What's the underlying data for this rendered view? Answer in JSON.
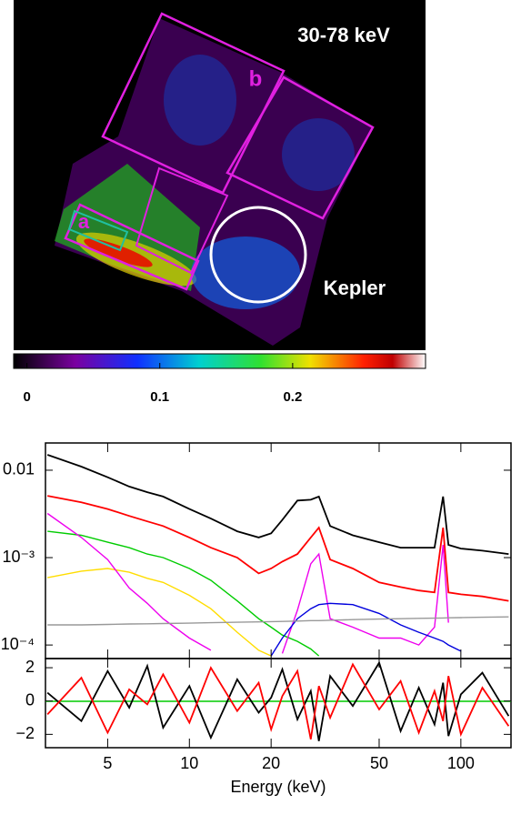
{
  "chart_data": [
    {
      "type": "image",
      "title": "30-78 keV",
      "annotations": [
        "a",
        "b",
        "Kepler"
      ],
      "colorbar_lim": [
        -0.01,
        0.3
      ],
      "colorbar_ticks": [
        0,
        0.1,
        0.2
      ]
    },
    {
      "type": "line",
      "xscale": "log",
      "yscale": "log",
      "xlim": [
        2.95,
        153
      ],
      "ylim": [
        7e-05,
        0.0205
      ],
      "yticks": [
        {
          "value": 0.01,
          "label": "0.01"
        },
        {
          "value": 0.001,
          "label": "10⁻³"
        },
        {
          "value": 0.0001,
          "label": "10⁻⁴"
        }
      ],
      "x": [
        3,
        4,
        5,
        6,
        7,
        8,
        10,
        12,
        15,
        18,
        20,
        22,
        25,
        28,
        30,
        33,
        40,
        50,
        60,
        70,
        80,
        86,
        90,
        100,
        120,
        150
      ],
      "series": [
        {
          "color": "#000000",
          "values": [
            0.015,
            0.011,
            0.0083,
            0.0065,
            0.0056,
            0.005,
            0.0036,
            0.0028,
            0.002,
            0.0017,
            0.0019,
            0.0027,
            0.0045,
            0.0046,
            0.005,
            0.0023,
            0.0018,
            0.0015,
            0.0013,
            0.0013,
            0.0013,
            0.005,
            0.0014,
            0.00127,
            0.0012,
            0.0011
          ]
        },
        {
          "color": "#ff0000",
          "values": [
            0.0051,
            0.0043,
            0.0036,
            0.003,
            0.0026,
            0.0023,
            0.0017,
            0.0013,
            0.001,
            0.00066,
            0.00075,
            0.0009,
            0.0011,
            0.0017,
            0.0022,
            0.00095,
            0.00075,
            0.00052,
            0.00046,
            0.00042,
            0.0004,
            0.0022,
            0.0004,
            0.00038,
            0.00036,
            0.00032
          ]
        },
        {
          "color": "#00cc00",
          "values": [
            0.002,
            0.0018,
            0.0015,
            0.0013,
            0.0011,
            0.001,
            0.00075,
            0.00055,
            0.00032,
            0.0002,
            0.00016,
            0.00013,
            0.00011,
            9e-05,
            7.5e-05,
            null,
            null,
            null,
            null,
            null,
            null,
            null,
            null,
            null,
            null,
            null
          ]
        },
        {
          "color": "#ffdd00",
          "values": [
            0.00059,
            0.0007,
            0.00075,
            0.00068,
            0.00058,
            0.00052,
            0.00037,
            0.00026,
            0.00014,
            8.7e-05,
            7.5e-05,
            null,
            null,
            null,
            null,
            null,
            null,
            null,
            null,
            null,
            null,
            null,
            null,
            null,
            null,
            null
          ]
        },
        {
          "color": "#ee00ee",
          "values": [
            0.0032,
            0.0017,
            0.00095,
            0.00045,
            0.0003,
            0.0002,
            0.00012,
            8.7e-05,
            null,
            null,
            null,
            8e-05,
            0.00025,
            0.00085,
            0.0011,
            0.0002,
            0.00016,
            0.00012,
            0.00012,
            0.0001,
            0.00016,
            0.0014,
            0.00018,
            null,
            null,
            null
          ]
        },
        {
          "color": "#0000dd",
          "values": [
            null,
            null,
            null,
            null,
            null,
            null,
            null,
            null,
            null,
            null,
            7.5e-05,
            0.00012,
            0.0002,
            0.00026,
            0.00029,
            0.0003,
            0.00029,
            0.00023,
            0.00017,
            0.00014,
            0.00012,
            0.00011,
            0.0001,
            8.5e-05,
            null,
            null
          ]
        },
        {
          "color": "#999999",
          "values": [
            0.00017,
            0.00017,
            0.000172,
            0.000174,
            0.000175,
            0.000176,
            0.000178,
            0.00018,
            0.000182,
            0.000184,
            0.000185,
            0.000186,
            0.000188,
            0.00019,
            0.00019,
            0.000192,
            0.000195,
            0.000198,
            0.0002,
            0.000202,
            0.000203,
            0.000204,
            0.000205,
            0.000206,
            0.000208,
            0.00021
          ]
        }
      ]
    },
    {
      "type": "residual",
      "xscale": "log",
      "xlim": [
        2.95,
        153
      ],
      "ylim": [
        -2.8,
        2.55
      ],
      "yticks": [
        2,
        0,
        {
          "value": -2,
          "label": "−2"
        }
      ],
      "xticks": [
        5,
        10,
        20,
        50,
        100
      ],
      "xlabel": "Energy (keV)",
      "x": [
        3,
        4,
        5,
        6,
        7,
        8,
        10,
        12,
        15,
        18,
        20,
        22,
        25,
        28,
        30,
        33,
        40,
        50,
        60,
        70,
        80,
        86,
        90,
        100,
        120,
        150
      ],
      "series": [
        {
          "color": "#000000",
          "values": [
            0.5,
            -1.2,
            1.8,
            -0.4,
            2.1,
            -1.6,
            0.9,
            -2.2,
            1.3,
            -0.7,
            0.2,
            1.9,
            -1.1,
            0.6,
            -2.4,
            1.5,
            -0.3,
            2.3,
            -1.8,
            0.8,
            -1.4,
            1.1,
            -2.1,
            0.4,
            1.7,
            -0.9
          ]
        },
        {
          "color": "#ff0000",
          "values": [
            -0.8,
            1.4,
            -1.9,
            0.7,
            -0.2,
            1.6,
            -1.3,
            2.0,
            -0.6,
            1.1,
            -1.7,
            0.3,
            1.8,
            -2.3,
            0.9,
            -1.0,
            2.2,
            -0.5,
            1.2,
            -1.9,
            0.6,
            -1.2,
            1.5,
            -2.0,
            0.8,
            -1.5
          ]
        }
      ]
    }
  ]
}
